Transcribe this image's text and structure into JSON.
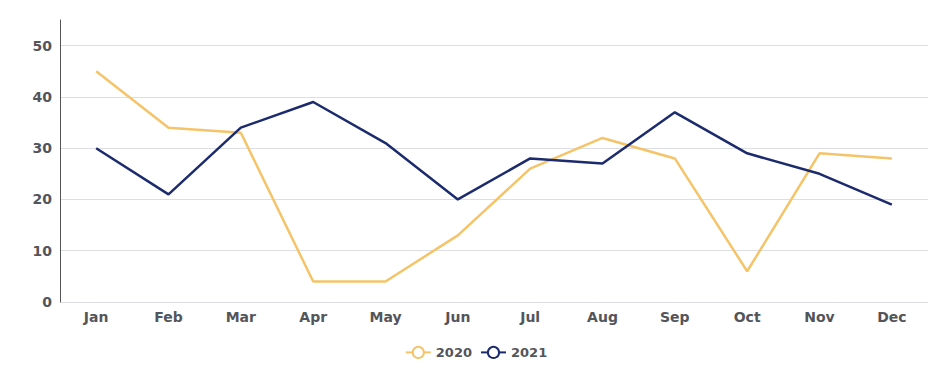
{
  "chart_data": {
    "type": "line",
    "categories": [
      "Jan",
      "Feb",
      "Mar",
      "Apr",
      "May",
      "Jun",
      "Jul",
      "Aug",
      "Sep",
      "Oct",
      "Nov",
      "Dec"
    ],
    "series": [
      {
        "name": "2020",
        "color": "#F5C468",
        "values": [
          45,
          34,
          33,
          4,
          4,
          13,
          26,
          32,
          28,
          6,
          29,
          28
        ]
      },
      {
        "name": "2021",
        "color": "#1C2B6E",
        "values": [
          30,
          21,
          34,
          39,
          31,
          20,
          28,
          27,
          37,
          29,
          25,
          19
        ]
      }
    ],
    "ylim": [
      0,
      55
    ],
    "yticks": [
      0,
      10,
      20,
      30,
      40,
      50
    ],
    "grid": true,
    "legend": "bottom"
  }
}
